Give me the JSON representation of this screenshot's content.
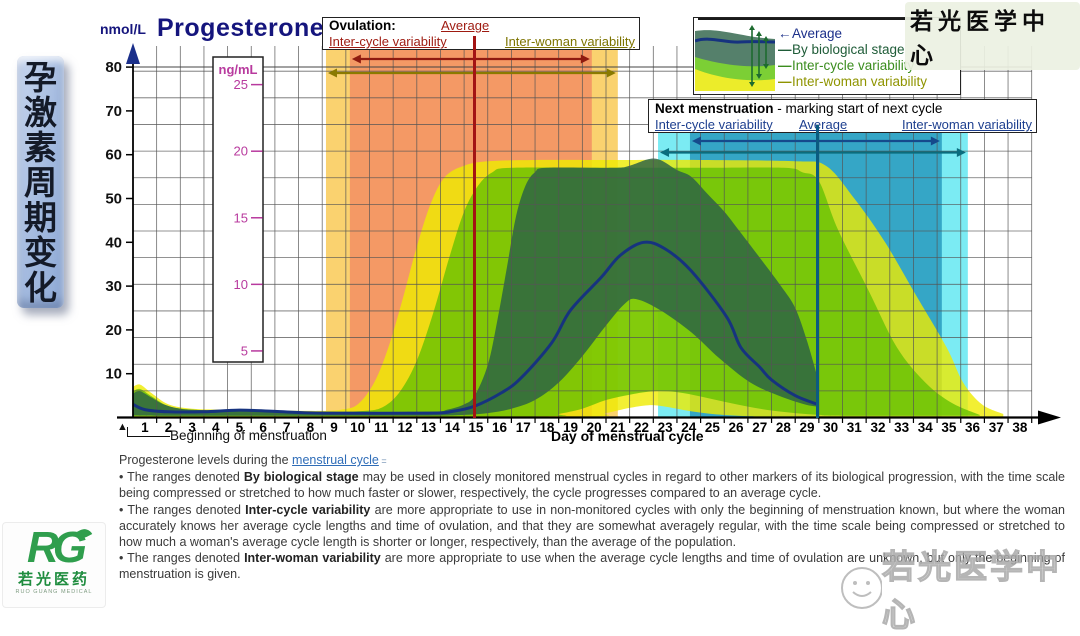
{
  "header": {
    "title": "Progesterone",
    "y_axis_unit": "nmol/L"
  },
  "sidebar_banner": {
    "chars": [
      "孕",
      "激",
      "素",
      "周",
      "期",
      "变",
      "化"
    ]
  },
  "watermarks": {
    "top_right": "若光医学中心",
    "bottom_right": "若光医学中心"
  },
  "logo": {
    "monogram": "RG",
    "name_cn": "若光医药",
    "name_en": "RUO GUANG MEDICAL"
  },
  "chart_data": {
    "type": "area",
    "title": "Progesterone",
    "ylabel": "nmol/L",
    "ylim": [
      0,
      80
    ],
    "y_ticks": [
      10,
      20,
      30,
      40,
      50,
      60,
      70,
      80
    ],
    "secondary_y": {
      "label": "ng/mL",
      "ticks": [
        5,
        10,
        15,
        20,
        25
      ],
      "nmol_per_ng": 3.04
    },
    "xlabel": "Day of menstrual cycle",
    "x_start_label": "Beginning of menstruation",
    "day_labels": [
      1,
      2,
      3,
      4,
      5,
      6,
      7,
      8,
      9,
      10,
      11,
      12,
      13,
      14,
      15,
      16,
      17,
      18,
      19,
      20,
      21,
      22,
      23,
      24,
      25,
      26,
      27,
      28,
      29,
      30,
      31,
      32,
      33,
      34,
      35,
      36,
      37,
      38
    ],
    "grid": "on",
    "bands": [
      {
        "name": "Inter-woman variability",
        "color": "#efeb00",
        "opacity": 0.8,
        "upper": [
          [
            0,
            7
          ],
          [
            0.3,
            7.5
          ],
          [
            0.8,
            5.5
          ],
          [
            1.5,
            3
          ],
          [
            2.5,
            2
          ],
          [
            4,
            1.8
          ],
          [
            6,
            1.6
          ],
          [
            8,
            1.5
          ],
          [
            8.8,
            1.8
          ],
          [
            9.5,
            3
          ],
          [
            10.2,
            8
          ],
          [
            10.8,
            16
          ],
          [
            11.4,
            27
          ],
          [
            12,
            39
          ],
          [
            12.6,
            49
          ],
          [
            13.2,
            55
          ],
          [
            14,
            57.5
          ],
          [
            15,
            58.5
          ],
          [
            17,
            58.8
          ],
          [
            20,
            58.8
          ],
          [
            24,
            58.8
          ],
          [
            28,
            58.5
          ],
          [
            29.3,
            57.5
          ],
          [
            30.5,
            50
          ],
          [
            31.8,
            40
          ],
          [
            33.1,
            28
          ],
          [
            34.4,
            16
          ],
          [
            35.1,
            8
          ],
          [
            35.9,
            3
          ],
          [
            36.8,
            0.8
          ]
        ],
        "lower": [
          [
            0,
            0.2
          ],
          [
            8,
            0.2
          ],
          [
            19,
            0.2
          ],
          [
            20,
            1
          ],
          [
            21,
            2.2
          ],
          [
            21.8,
            2.8
          ],
          [
            22.5,
            2.5
          ],
          [
            23.5,
            1.5
          ],
          [
            24.5,
            0.8
          ],
          [
            26,
            0.3
          ],
          [
            28,
            0.2
          ],
          [
            36.8,
            0.2
          ]
        ]
      },
      {
        "name": "Inter-cycle variability",
        "color": "#5dbf00",
        "opacity": 0.75,
        "upper": [
          [
            0,
            6
          ],
          [
            0.3,
            6.5
          ],
          [
            0.8,
            4.8
          ],
          [
            1.5,
            2.6
          ],
          [
            2.5,
            1.8
          ],
          [
            4,
            1.6
          ],
          [
            6,
            1.4
          ],
          [
            8,
            1.3
          ],
          [
            9.8,
            1.5
          ],
          [
            10.6,
            2.5
          ],
          [
            11.3,
            6
          ],
          [
            12,
            13
          ],
          [
            12.7,
            24
          ],
          [
            13.4,
            37
          ],
          [
            14,
            47
          ],
          [
            14.6,
            53
          ],
          [
            15.2,
            56
          ],
          [
            16,
            57
          ],
          [
            20,
            57
          ],
          [
            24,
            57
          ],
          [
            27.5,
            57
          ],
          [
            28.3,
            56
          ],
          [
            29,
            54
          ],
          [
            29.8,
            43
          ],
          [
            31.1,
            29
          ],
          [
            32.3,
            16
          ],
          [
            33.5,
            8
          ],
          [
            34.6,
            3.4
          ],
          [
            35.8,
            0.6
          ]
        ],
        "lower": [
          [
            0,
            0.3
          ],
          [
            8,
            0.3
          ],
          [
            17.5,
            0.3
          ],
          [
            18,
            0.8
          ],
          [
            19,
            2
          ],
          [
            20,
            4
          ],
          [
            21,
            5.2
          ],
          [
            22,
            6
          ],
          [
            23,
            5.8
          ],
          [
            24,
            4.8
          ],
          [
            25,
            3.6
          ],
          [
            26,
            2.5
          ],
          [
            27,
            1.6
          ],
          [
            28,
            1
          ],
          [
            29,
            0.6
          ],
          [
            30,
            0.4
          ],
          [
            35.8,
            0.4
          ]
        ]
      },
      {
        "name": "By biological stage",
        "color": "#2a6046",
        "opacity": 0.82,
        "upper": [
          [
            0,
            5.5
          ],
          [
            0.3,
            6
          ],
          [
            0.8,
            4.5
          ],
          [
            1.3,
            3
          ],
          [
            2,
            2
          ],
          [
            3,
            1.7
          ],
          [
            5,
            1.5
          ],
          [
            8,
            1.3
          ],
          [
            12.5,
            1.3
          ],
          [
            13.3,
            1.8
          ],
          [
            14,
            3
          ],
          [
            14.45,
            5
          ],
          [
            15,
            12
          ],
          [
            15.4,
            22
          ],
          [
            15.8,
            34
          ],
          [
            16.2,
            46
          ],
          [
            16.6,
            53
          ],
          [
            17,
            56
          ],
          [
            17.5,
            57
          ],
          [
            20.3,
            57
          ],
          [
            21,
            57.5
          ],
          [
            21.8,
            59
          ],
          [
            22.3,
            58.8
          ],
          [
            23,
            56.5
          ],
          [
            23.6,
            55
          ],
          [
            24.3,
            51
          ],
          [
            25,
            47
          ],
          [
            25.65,
            42.5
          ],
          [
            26.5,
            36.5
          ],
          [
            27.4,
            30
          ],
          [
            28,
            25
          ],
          [
            28.5,
            17.5
          ],
          [
            28.95,
            9
          ]
        ],
        "lower": [
          [
            0,
            0.5
          ],
          [
            1,
            0.4
          ],
          [
            8,
            0.4
          ],
          [
            12.5,
            0.4
          ],
          [
            14,
            0.6
          ],
          [
            15,
            1
          ],
          [
            16,
            2
          ],
          [
            17,
            4
          ],
          [
            18,
            8
          ],
          [
            19,
            14
          ],
          [
            20,
            21
          ],
          [
            20.8,
            26
          ],
          [
            21.3,
            27
          ],
          [
            22.3,
            24.5
          ],
          [
            23.6,
            19.5
          ],
          [
            24.8,
            13.5
          ],
          [
            26.1,
            8
          ],
          [
            27.3,
            5
          ],
          [
            28.4,
            3
          ],
          [
            28.95,
            2.5
          ]
        ]
      }
    ],
    "average_line": {
      "name": "Average",
      "color": "#16337f",
      "points": [
        [
          0,
          3
        ],
        [
          0.5,
          1.8
        ],
        [
          1.5,
          1.3
        ],
        [
          3,
          1.3
        ],
        [
          4.5,
          1.7
        ],
        [
          6,
          1.4
        ],
        [
          8,
          1
        ],
        [
          12.5,
          1
        ],
        [
          13.5,
          1.4
        ],
        [
          14.45,
          2.6
        ],
        [
          15.6,
          5.7
        ],
        [
          16.4,
          9
        ],
        [
          17.7,
          17
        ],
        [
          18.5,
          24.5
        ],
        [
          19.8,
          32
        ],
        [
          20.6,
          37
        ],
        [
          21.6,
          40
        ],
        [
          22.5,
          38.5
        ],
        [
          23.6,
          33.5
        ],
        [
          25.1,
          23
        ],
        [
          25.7,
          16
        ],
        [
          26.5,
          11.5
        ],
        [
          27,
          8.6
        ],
        [
          28,
          5
        ],
        [
          28.95,
          3
        ]
      ]
    },
    "phase_spans": [
      {
        "name": "Ovulation inter-woman variability",
        "from_day": 8.16,
        "to_day": 20.5,
        "color": "rgba(250,205,95,0.9)",
        "arrow_color": "#8a7a00"
      },
      {
        "name": "Ovulation inter-cycle variability",
        "from_day": 9.17,
        "to_day": 19.4,
        "color": "rgba(243,150,100,0.95)",
        "arrow_color": "#8f1a0f"
      },
      {
        "name": "Next menstruation inter-woman variability",
        "from_day": 22.2,
        "to_day": 35.3,
        "color": "rgba(35,222,235,0.6)",
        "arrow_color": "#0a6d7e"
      },
      {
        "name": "Next menstruation inter-cycle variability",
        "from_day": 23.55,
        "to_day": 34.2,
        "color": "rgba(10,125,170,0.62)",
        "arrow_color": "#154a8c"
      }
    ],
    "event_lines": [
      {
        "name": "Ovulation average",
        "day": 14.45,
        "color": "#a31414"
      },
      {
        "name": "Next menstruation average",
        "day": 28.95,
        "color": "#0b5b80"
      }
    ],
    "legend": {
      "entries": [
        {
          "label": "Average",
          "color": "#1b2f8a",
          "prefix": "←"
        },
        {
          "label": "By biological stage",
          "color": "#1f5c38",
          "prefix": "—"
        },
        {
          "label": "Inter-cycle variability",
          "color": "#3b8d1e",
          "prefix": "—"
        },
        {
          "label": "Inter-woman variability",
          "color": "#8f9400",
          "prefix": "—"
        }
      ]
    },
    "annotation_boxes": {
      "ovulation": {
        "title": "Ovulation:",
        "average_label": "Average",
        "inter_cycle_label": "Inter-cycle variability",
        "inter_woman_label": "Inter-woman variability"
      },
      "next_menstruation": {
        "title": "Next menstruation",
        "subtitle": " - marking start of next cycle",
        "average_label": "Average",
        "inter_cycle_label": "Inter-cycle variability",
        "inter_woman_label": "Inter-woman variability"
      }
    }
  },
  "footer": {
    "intro_pre": "Progesterone levels during the ",
    "intro_link": "menstrual cycle",
    "intro_suffix": " =",
    "bullets": [
      {
        "pre": "• The ranges denoted ",
        "bold": "By biological stage",
        "post": " may be used in closely monitored menstrual cycles in regard to other markers of its biological progression, with the time scale being compressed or stretched to how much faster or slower, respectively, the cycle progresses compared to an average cycle."
      },
      {
        "pre": "• The ranges denoted ",
        "bold": "Inter-cycle variability",
        "post": " are more appropriate to use in non-monitored cycles with only the beginning of menstruation known, but where the woman accurately knows her average cycle lengths and time of ovulation, and that they are somewhat averagely regular, with the time scale being compressed or stretched to how much a woman's average cycle length is shorter or longer, respectively, than the average of the population."
      },
      {
        "pre": "• The ranges denoted ",
        "bold": "Inter-woman variability",
        "post": " are more appropriate to use when the average cycle lengths and time of ovulation are unknown, but only the beginning of menstruation is given."
      }
    ]
  }
}
